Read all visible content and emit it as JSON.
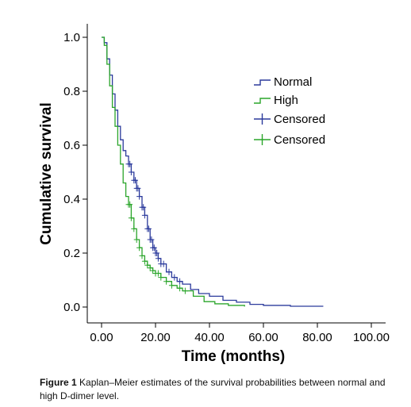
{
  "chart_data": {
    "type": "line",
    "title": "",
    "xlabel": "Time (months)",
    "ylabel": "Cumulative survival",
    "xlim": [
      0,
      100
    ],
    "ylim": [
      0,
      1.0
    ],
    "x_ticks": [
      "0.00",
      "20.00",
      "40.00",
      "60.00",
      "80.00",
      "100.00"
    ],
    "y_ticks": [
      "0.0",
      "0.2",
      "0.4",
      "0.6",
      "0.8",
      "1.0"
    ],
    "grid": false,
    "legend_position": "top-right",
    "legend": [
      "Normal",
      "High",
      "Censored",
      "Censored"
    ],
    "colors": {
      "Normal": "#2b3a9c",
      "High": "#2aa52a"
    },
    "series": [
      {
        "name": "Normal",
        "color": "#2b3a9c",
        "points": [
          [
            0,
            1.0
          ],
          [
            1,
            0.98
          ],
          [
            2,
            0.92
          ],
          [
            3,
            0.86
          ],
          [
            4,
            0.79
          ],
          [
            5,
            0.73
          ],
          [
            6,
            0.67
          ],
          [
            7,
            0.62
          ],
          [
            8,
            0.58
          ],
          [
            9,
            0.56
          ],
          [
            10,
            0.53
          ],
          [
            11,
            0.5
          ],
          [
            12,
            0.47
          ],
          [
            13,
            0.44
          ],
          [
            14,
            0.41
          ],
          [
            15,
            0.37
          ],
          [
            16,
            0.34
          ],
          [
            17,
            0.29
          ],
          [
            18,
            0.25
          ],
          [
            19,
            0.22
          ],
          [
            20,
            0.2
          ],
          [
            21,
            0.18
          ],
          [
            22,
            0.16
          ],
          [
            24,
            0.13
          ],
          [
            26,
            0.11
          ],
          [
            28,
            0.095
          ],
          [
            30,
            0.085
          ],
          [
            33,
            0.065
          ],
          [
            36,
            0.05
          ],
          [
            40,
            0.04
          ],
          [
            45,
            0.025
          ],
          [
            50,
            0.018
          ],
          [
            55,
            0.01
          ],
          [
            60,
            0.006
          ],
          [
            70,
            0.003
          ],
          [
            82,
            0.001
          ]
        ],
        "censored_x": [
          10,
          10.5,
          11,
          12,
          12.5,
          13,
          13.5,
          14,
          15,
          15.5,
          16,
          17,
          17.5,
          18,
          18.5,
          19,
          19.5,
          20,
          20.5,
          21,
          22,
          23,
          25,
          27,
          29
        ]
      },
      {
        "name": "High",
        "color": "#2aa52a",
        "points": [
          [
            0,
            1.0
          ],
          [
            1,
            0.97
          ],
          [
            2,
            0.9
          ],
          [
            3,
            0.82
          ],
          [
            4,
            0.74
          ],
          [
            5,
            0.67
          ],
          [
            6,
            0.6
          ],
          [
            7,
            0.53
          ],
          [
            8,
            0.46
          ],
          [
            9,
            0.41
          ],
          [
            10,
            0.38
          ],
          [
            11,
            0.33
          ],
          [
            12,
            0.29
          ],
          [
            13,
            0.25
          ],
          [
            14,
            0.22
          ],
          [
            15,
            0.19
          ],
          [
            16,
            0.17
          ],
          [
            17,
            0.155
          ],
          [
            18,
            0.145
          ],
          [
            19,
            0.135
          ],
          [
            20,
            0.125
          ],
          [
            22,
            0.11
          ],
          [
            24,
            0.095
          ],
          [
            26,
            0.08
          ],
          [
            28,
            0.07
          ],
          [
            30,
            0.06
          ],
          [
            34,
            0.04
          ],
          [
            38,
            0.02
          ],
          [
            42,
            0.012
          ],
          [
            47,
            0.006
          ],
          [
            53,
            0.002
          ]
        ],
        "censored_x": [
          10,
          10.5,
          11,
          12,
          13,
          14,
          15,
          16,
          17,
          18,
          19,
          20,
          21,
          22,
          24,
          26,
          29,
          31
        ]
      }
    ]
  },
  "caption": {
    "label": "Figure 1",
    "text": " Kaplan–Meier estimates of the survival probabilities between normal and high D-dimer level."
  }
}
